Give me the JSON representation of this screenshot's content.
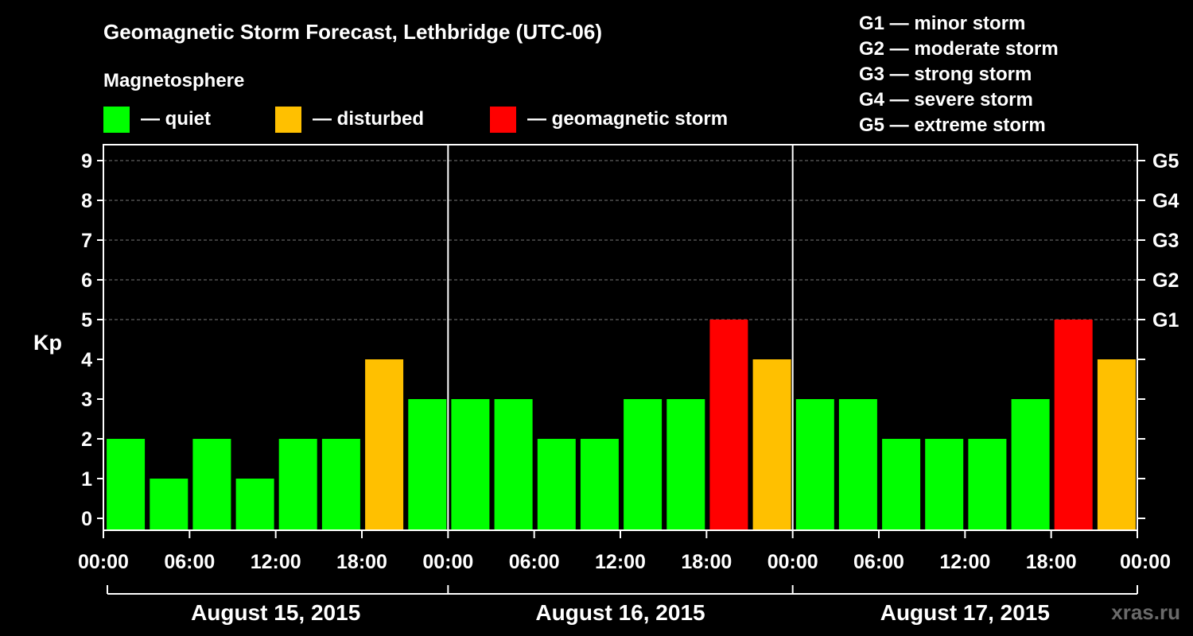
{
  "chart_data": {
    "type": "bar",
    "title": "Geomagnetic Storm Forecast, Lethbridge (UTC-06)",
    "legend_title": "Magnetosphere",
    "legend": [
      {
        "label": "— quiet",
        "color": "#00ff00"
      },
      {
        "label": "— disturbed",
        "color": "#ffc000"
      },
      {
        "label": "— geomagnetic storm",
        "color": "#ff0000"
      }
    ],
    "storm_scale": [
      "G1 — minor storm",
      "G2 — moderate storm",
      "G3 — strong storm",
      "G4 — severe storm",
      "G5 — extreme storm"
    ],
    "ylabel": "Kp",
    "ylim": [
      0,
      9
    ],
    "yticks": [
      "0",
      "1",
      "2",
      "3",
      "4",
      "5",
      "6",
      "7",
      "8",
      "9"
    ],
    "right_ticks": [
      {
        "kp": 5,
        "label": "G1"
      },
      {
        "kp": 6,
        "label": "G2"
      },
      {
        "kp": 7,
        "label": "G3"
      },
      {
        "kp": 8,
        "label": "G4"
      },
      {
        "kp": 9,
        "label": "G5"
      }
    ],
    "xticks": [
      "00:00",
      "06:00",
      "12:00",
      "18:00",
      "00:00",
      "06:00",
      "12:00",
      "18:00",
      "00:00",
      "06:00",
      "12:00",
      "18:00",
      "00:00"
    ],
    "days": [
      "August 15, 2015",
      "August 16, 2015",
      "August 17, 2015"
    ],
    "values": [
      2,
      1,
      2,
      1,
      2,
      2,
      4,
      3,
      3,
      3,
      2,
      2,
      3,
      3,
      5,
      4,
      3,
      3,
      2,
      2,
      2,
      3,
      5,
      4
    ],
    "colors": {
      "quiet": "#00ff00",
      "disturbed": "#ffc000",
      "storm": "#ff0000"
    },
    "watermark": "xras.ru"
  }
}
